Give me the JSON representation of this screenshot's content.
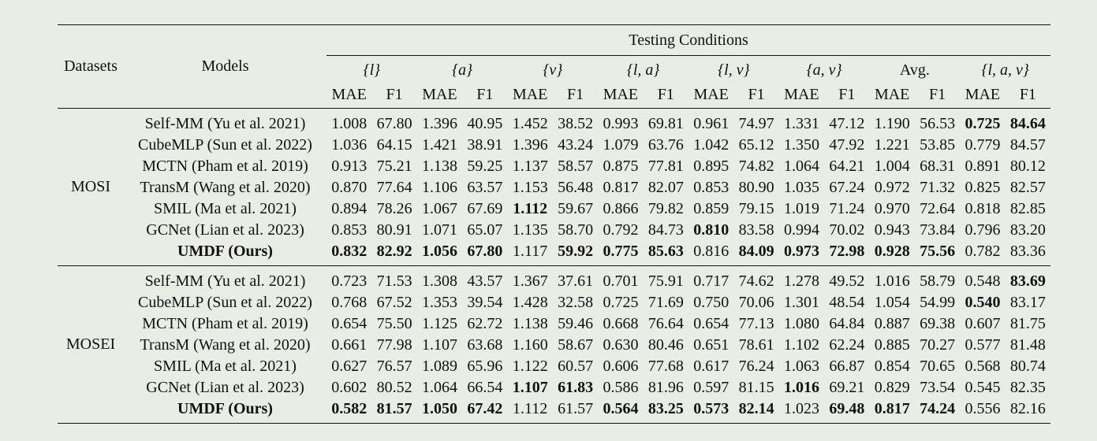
{
  "header": {
    "datasets": "Datasets",
    "models": "Models",
    "testing": "Testing Conditions",
    "conditions": [
      "{l}",
      "{a}",
      "{v}",
      "{l, a}",
      "{l, v}",
      "{a, v}",
      "Avg.",
      "{l, a, v}"
    ],
    "metrics": [
      "MAE",
      "F1"
    ]
  },
  "groups": [
    {
      "dataset": "MOSI",
      "rows": [
        {
          "model": "Self-MM (Yu et al. 2021)",
          "values": [
            "1.008",
            "67.80",
            "1.396",
            "40.95",
            "1.452",
            "38.52",
            "0.993",
            "69.81",
            "0.961",
            "74.97",
            "1.331",
            "47.12",
            "1.190",
            "56.53",
            "0.725",
            "84.64"
          ],
          "bold": [
            14,
            15
          ]
        },
        {
          "model": "CubeMLP (Sun et al. 2022)",
          "values": [
            "1.036",
            "64.15",
            "1.421",
            "38.91",
            "1.396",
            "43.24",
            "1.079",
            "63.76",
            "1.042",
            "65.12",
            "1.350",
            "47.92",
            "1.221",
            "53.85",
            "0.779",
            "84.57"
          ],
          "bold": []
        },
        {
          "model": "MCTN (Pham et al. 2019)",
          "values": [
            "0.913",
            "75.21",
            "1.138",
            "59.25",
            "1.137",
            "58.57",
            "0.875",
            "77.81",
            "0.895",
            "74.82",
            "1.064",
            "64.21",
            "1.004",
            "68.31",
            "0.891",
            "80.12"
          ],
          "bold": []
        },
        {
          "model": "TransM (Wang et al. 2020)",
          "values": [
            "0.870",
            "77.64",
            "1.106",
            "63.57",
            "1.153",
            "56.48",
            "0.817",
            "82.07",
            "0.853",
            "80.90",
            "1.035",
            "67.24",
            "0.972",
            "71.32",
            "0.825",
            "82.57"
          ],
          "bold": []
        },
        {
          "model": "SMIL (Ma et al. 2021)",
          "values": [
            "0.894",
            "78.26",
            "1.067",
            "67.69",
            "1.112",
            "59.67",
            "0.866",
            "79.82",
            "0.859",
            "79.15",
            "1.019",
            "71.24",
            "0.970",
            "72.64",
            "0.818",
            "82.85"
          ],
          "bold": [
            4
          ]
        },
        {
          "model": "GCNet (Lian et al. 2023)",
          "values": [
            "0.853",
            "80.91",
            "1.071",
            "65.07",
            "1.135",
            "58.70",
            "0.792",
            "84.73",
            "0.810",
            "83.58",
            "0.994",
            "70.02",
            "0.943",
            "73.84",
            "0.796",
            "83.20"
          ],
          "bold": [
            8
          ]
        },
        {
          "model": "UMDF (Ours)",
          "model_bold": true,
          "values": [
            "0.832",
            "82.92",
            "1.056",
            "67.80",
            "1.117",
            "59.92",
            "0.775",
            "85.63",
            "0.816",
            "84.09",
            "0.973",
            "72.98",
            "0.928",
            "75.56",
            "0.782",
            "83.36"
          ],
          "bold": [
            0,
            1,
            2,
            3,
            5,
            6,
            7,
            9,
            10,
            11,
            12,
            13
          ]
        }
      ]
    },
    {
      "dataset": "MOSEI",
      "rows": [
        {
          "model": "Self-MM (Yu et al. 2021)",
          "values": [
            "0.723",
            "71.53",
            "1.308",
            "43.57",
            "1.367",
            "37.61",
            "0.701",
            "75.91",
            "0.717",
            "74.62",
            "1.278",
            "49.52",
            "1.016",
            "58.79",
            "0.548",
            "83.69"
          ],
          "bold": [
            15
          ]
        },
        {
          "model": "CubeMLP (Sun et al. 2022)",
          "values": [
            "0.768",
            "67.52",
            "1.353",
            "39.54",
            "1.428",
            "32.58",
            "0.725",
            "71.69",
            "0.750",
            "70.06",
            "1.301",
            "48.54",
            "1.054",
            "54.99",
            "0.540",
            "83.17"
          ],
          "bold": [
            14
          ]
        },
        {
          "model": "MCTN (Pham et al. 2019)",
          "values": [
            "0.654",
            "75.50",
            "1.125",
            "62.72",
            "1.138",
            "59.46",
            "0.668",
            "76.64",
            "0.654",
            "77.13",
            "1.080",
            "64.84",
            "0.887",
            "69.38",
            "0.607",
            "81.75"
          ],
          "bold": []
        },
        {
          "model": "TransM (Wang et al. 2020)",
          "values": [
            "0.661",
            "77.98",
            "1.107",
            "63.68",
            "1.160",
            "58.67",
            "0.630",
            "80.46",
            "0.651",
            "78.61",
            "1.102",
            "62.24",
            "0.885",
            "70.27",
            "0.577",
            "81.48"
          ],
          "bold": []
        },
        {
          "model": "SMIL (Ma et al. 2021)",
          "values": [
            "0.627",
            "76.57",
            "1.089",
            "65.96",
            "1.122",
            "60.57",
            "0.606",
            "77.68",
            "0.617",
            "76.24",
            "1.063",
            "66.87",
            "0.854",
            "70.65",
            "0.568",
            "80.74"
          ],
          "bold": []
        },
        {
          "model": "GCNet (Lian et al. 2023)",
          "values": [
            "0.602",
            "80.52",
            "1.064",
            "66.54",
            "1.107",
            "61.83",
            "0.586",
            "81.96",
            "0.597",
            "81.15",
            "1.016",
            "69.21",
            "0.829",
            "73.54",
            "0.545",
            "82.35"
          ],
          "bold": [
            4,
            5,
            10
          ]
        },
        {
          "model": "UMDF (Ours)",
          "model_bold": true,
          "values": [
            "0.582",
            "81.57",
            "1.050",
            "67.42",
            "1.112",
            "61.57",
            "0.564",
            "83.25",
            "0.573",
            "82.14",
            "1.023",
            "69.48",
            "0.817",
            "74.24",
            "0.556",
            "82.16"
          ],
          "bold": [
            0,
            1,
            2,
            3,
            6,
            7,
            8,
            9,
            11,
            12,
            13
          ]
        }
      ]
    }
  ]
}
